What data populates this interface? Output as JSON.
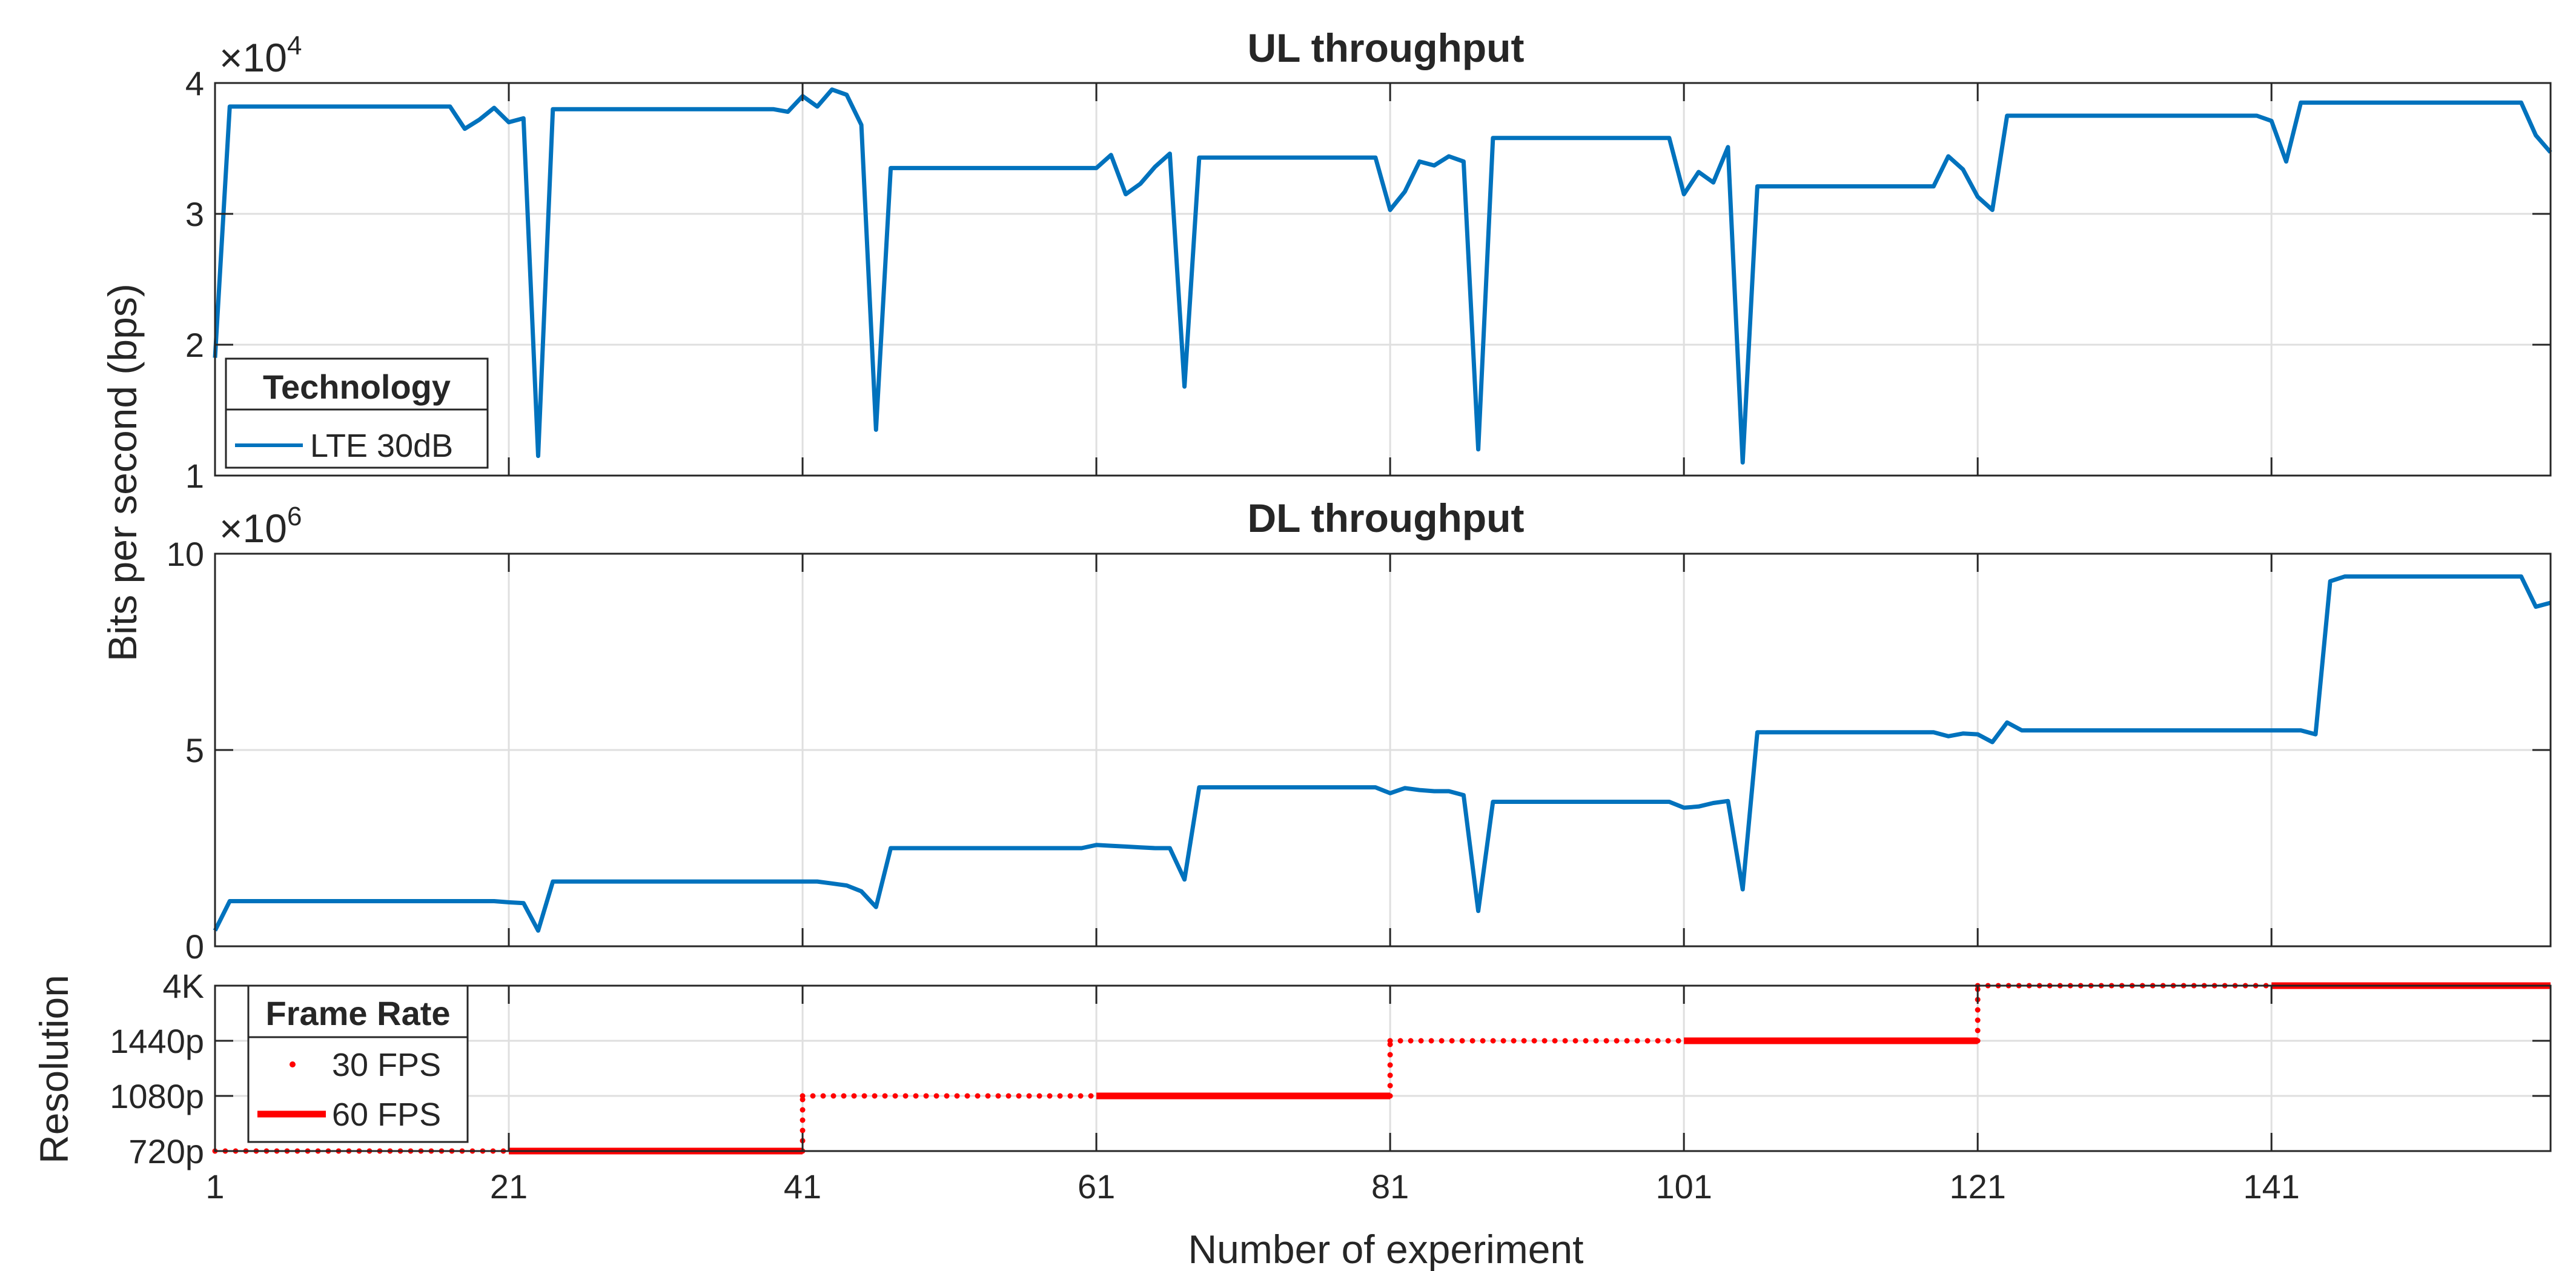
{
  "chart_data": [
    {
      "type": "line",
      "title": "UL throughput",
      "ylabel": "Bits per second (bps)",
      "xlim": [
        1,
        160
      ],
      "ylim": [
        10000,
        40000
      ],
      "y_exponent": "×10^4",
      "yticks": [
        10000,
        20000,
        30000,
        40000
      ],
      "ytick_labels": [
        "1",
        "2",
        "3",
        "4"
      ],
      "grid": true,
      "legend": {
        "title": "Technology",
        "placement": "bottom-left",
        "entries": [
          "LTE 30dB"
        ]
      },
      "series": [
        {
          "name": "LTE 30dB",
          "color": "#0072BD",
          "points": [
            [
              1,
              19000
            ],
            [
              2,
              38200
            ],
            [
              17,
              38200
            ],
            [
              18,
              36500
            ],
            [
              19,
              37200
            ],
            [
              20,
              38100
            ],
            [
              21,
              37000
            ],
            [
              22,
              37300
            ],
            [
              23,
              11500
            ],
            [
              24,
              38000
            ],
            [
              39,
              38000
            ],
            [
              40,
              37800
            ],
            [
              41,
              39000
            ],
            [
              42,
              38200
            ],
            [
              43,
              39500
            ],
            [
              44,
              39100
            ],
            [
              45,
              36800
            ],
            [
              46,
              13500
            ],
            [
              47,
              33500
            ],
            [
              61,
              33500
            ],
            [
              62,
              34500
            ],
            [
              63,
              31500
            ],
            [
              64,
              32300
            ],
            [
              65,
              33600
            ],
            [
              66,
              34600
            ],
            [
              67,
              16800
            ],
            [
              68,
              34300
            ],
            [
              80,
              34300
            ],
            [
              81,
              30300
            ],
            [
              82,
              31700
            ],
            [
              83,
              34000
            ],
            [
              84,
              33700
            ],
            [
              85,
              34400
            ],
            [
              86,
              34000
            ],
            [
              87,
              12000
            ],
            [
              88,
              35800
            ],
            [
              100,
              35800
            ],
            [
              101,
              31500
            ],
            [
              102,
              33200
            ],
            [
              103,
              32400
            ],
            [
              104,
              35100
            ],
            [
              105,
              11000
            ],
            [
              106,
              32100
            ],
            [
              118,
              32100
            ],
            [
              119,
              34400
            ],
            [
              120,
              33400
            ],
            [
              121,
              31300
            ],
            [
              122,
              30300
            ],
            [
              123,
              37500
            ],
            [
              140,
              37500
            ],
            [
              141,
              37100
            ],
            [
              142,
              34000
            ],
            [
              143,
              38500
            ],
            [
              158,
              38500
            ],
            [
              159,
              36000
            ],
            [
              160,
              34700
            ]
          ]
        }
      ]
    },
    {
      "type": "line",
      "title": "DL throughput",
      "xlim": [
        1,
        160
      ],
      "ylim": [
        0,
        10000000
      ],
      "y_exponent": "×10^6",
      "yticks": [
        0,
        5000000,
        10000000
      ],
      "ytick_labels": [
        "0",
        "5",
        "10"
      ],
      "grid": true,
      "series": [
        {
          "name": "LTE 30dB",
          "color": "#0072BD",
          "points": [
            [
              1,
              400000
            ],
            [
              2,
              1150000
            ],
            [
              20,
              1150000
            ],
            [
              21,
              1120000
            ],
            [
              22,
              1100000
            ],
            [
              23,
              400000
            ],
            [
              24,
              1650000
            ],
            [
              42,
              1650000
            ],
            [
              43,
              1600000
            ],
            [
              44,
              1550000
            ],
            [
              45,
              1400000
            ],
            [
              46,
              1000000
            ],
            [
              47,
              2500000
            ],
            [
              60,
              2500000
            ],
            [
              61,
              2580000
            ],
            [
              62,
              2560000
            ],
            [
              63,
              2540000
            ],
            [
              64,
              2520000
            ],
            [
              65,
              2500000
            ],
            [
              66,
              2500000
            ],
            [
              67,
              1700000
            ],
            [
              68,
              4050000
            ],
            [
              80,
              4050000
            ],
            [
              81,
              3900000
            ],
            [
              82,
              4030000
            ],
            [
              83,
              3980000
            ],
            [
              84,
              3950000
            ],
            [
              85,
              3950000
            ],
            [
              86,
              3850000
            ],
            [
              87,
              900000
            ],
            [
              88,
              3680000
            ],
            [
              100,
              3680000
            ],
            [
              101,
              3530000
            ],
            [
              102,
              3560000
            ],
            [
              103,
              3650000
            ],
            [
              104,
              3700000
            ],
            [
              105,
              1450000
            ],
            [
              106,
              5450000
            ],
            [
              118,
              5450000
            ],
            [
              119,
              5350000
            ],
            [
              120,
              5420000
            ],
            [
              121,
              5400000
            ],
            [
              122,
              5200000
            ],
            [
              123,
              5700000
            ],
            [
              124,
              5500000
            ],
            [
              143,
              5500000
            ],
            [
              144,
              5400000
            ],
            [
              145,
              9300000
            ],
            [
              146,
              9420000
            ],
            [
              158,
              9420000
            ],
            [
              159,
              8650000
            ],
            [
              160,
              8750000
            ]
          ]
        }
      ]
    },
    {
      "type": "line",
      "ylabel": "Resolution",
      "xlabel": "Number of experiment",
      "xlim": [
        1,
        160
      ],
      "xticks": [
        1,
        21,
        41,
        61,
        81,
        101,
        121,
        141
      ],
      "xtick_labels": [
        "1",
        "21",
        "41",
        "61",
        "81",
        "101",
        "121",
        "141"
      ],
      "yticks": [
        1,
        2,
        3,
        4
      ],
      "ytick_labels": [
        "720p",
        "1080p",
        "1440p",
        "4K"
      ],
      "ylim": [
        1,
        4
      ],
      "grid": true,
      "legend": {
        "title": "Frame Rate",
        "placement": "top-left",
        "entries": [
          "30 FPS",
          "60 FPS"
        ]
      },
      "series": [
        {
          "name": "30 FPS",
          "color": "#FF0000",
          "style": "dotted",
          "segments": [
            [
              1,
              21,
              1
            ],
            [
              41,
              61,
              2
            ],
            [
              81,
              101,
              3
            ],
            [
              121,
              141,
              4
            ]
          ]
        },
        {
          "name": "60 FPS",
          "color": "#FF0000",
          "style": "solid",
          "segments": [
            [
              21,
              41,
              1
            ],
            [
              61,
              81,
              2
            ],
            [
              101,
              121,
              3
            ],
            [
              141,
              160,
              4
            ]
          ]
        }
      ]
    }
  ]
}
